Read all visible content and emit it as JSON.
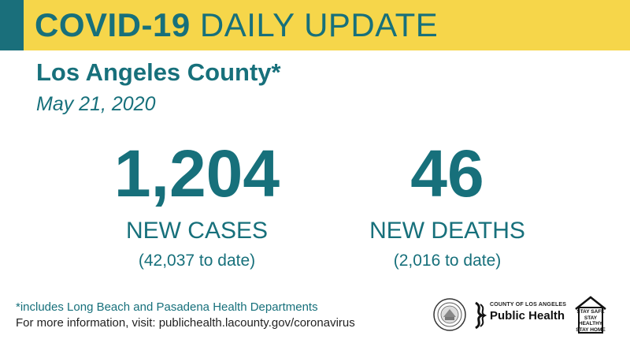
{
  "header": {
    "title_bold": "COVID-19",
    "title_rest": "DAILY UPDATE"
  },
  "region": "Los Angeles County*",
  "date": "May 21, 2020",
  "stats": {
    "cases": {
      "value": "1,204",
      "label": "NEW CASES",
      "to_date": "(42,037 to date)"
    },
    "deaths": {
      "value": "46",
      "label": "NEW DEATHS",
      "to_date": "(2,016 to date)"
    }
  },
  "footer": {
    "footnote": "*includes Long Beach and Pasadena Health Departments",
    "more_info": "For more information, visit: publichealth.lacounty.gov/coronavirus"
  },
  "logos": {
    "public_health_small": "COUNTY OF LOS ANGELES",
    "public_health_name": "Public Health",
    "stay_line1": "STAY SAFE",
    "stay_line2": "STAY HEALTHY",
    "stay_line3": "STAY HOME"
  },
  "colors": {
    "teal": "#17707b",
    "yellow": "#f6d64a"
  },
  "icons": [
    "county-seal-icon",
    "public-health-logo-icon",
    "stay-home-house-icon"
  ]
}
